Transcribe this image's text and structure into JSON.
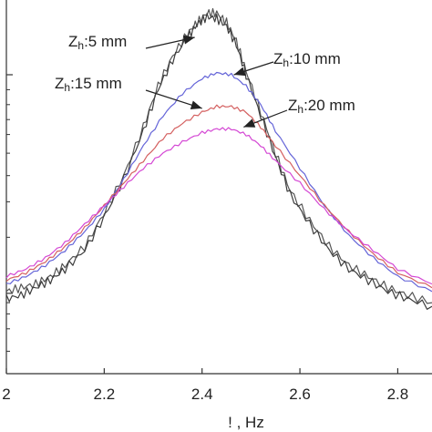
{
  "chart_data": {
    "type": "line",
    "title": "",
    "xlabel": "!  , Hz",
    "ylabel": "",
    "xlim": [
      2.0,
      2.87
    ],
    "ylim": [
      0.0,
      1.0
    ],
    "x_ticks": [
      {
        "value": 2.0,
        "label": "2"
      },
      {
        "value": 2.2,
        "label": "2.2"
      },
      {
        "value": 2.4,
        "label": "2.4"
      },
      {
        "value": 2.6,
        "label": "2.6"
      },
      {
        "value": 2.8,
        "label": "2.8"
      }
    ],
    "y_major_ticks": [
      0.215,
      0.8
    ],
    "y_minor_ticks": [
      0.06,
      0.12,
      0.16,
      0.19,
      0.365,
      0.46,
      0.53,
      0.59,
      0.64,
      0.68,
      0.72,
      0.76
    ],
    "grid": false,
    "legend": "none",
    "series": [
      {
        "color": "#555555",
        "x": [
          2.0,
          2.03,
          2.06,
          2.09,
          2.12,
          2.16,
          2.2,
          2.24,
          2.28,
          2.31,
          2.34,
          2.37,
          2.39,
          2.41,
          2.43,
          2.45,
          2.47,
          2.49,
          2.52,
          2.55,
          2.58,
          2.62,
          2.66,
          2.7,
          2.74,
          2.78,
          2.82,
          2.87
        ],
        "values": [
          0.22,
          0.23,
          0.24,
          0.26,
          0.29,
          0.34,
          0.43,
          0.53,
          0.66,
          0.77,
          0.85,
          0.91,
          0.94,
          0.965,
          0.965,
          0.94,
          0.89,
          0.81,
          0.7,
          0.59,
          0.49,
          0.41,
          0.34,
          0.29,
          0.26,
          0.23,
          0.21,
          0.19
        ]
      },
      {
        "color": "#3d3d3d",
        "x": [
          2.0,
          2.03,
          2.06,
          2.09,
          2.12,
          2.16,
          2.2,
          2.24,
          2.28,
          2.31,
          2.34,
          2.37,
          2.39,
          2.41,
          2.43,
          2.45,
          2.47,
          2.49,
          2.52,
          2.55,
          2.58,
          2.62,
          2.66,
          2.7,
          2.74,
          2.78,
          2.82,
          2.87
        ],
        "values": [
          0.2,
          0.21,
          0.23,
          0.25,
          0.28,
          0.33,
          0.42,
          0.52,
          0.65,
          0.76,
          0.84,
          0.9,
          0.935,
          0.955,
          0.95,
          0.93,
          0.88,
          0.8,
          0.69,
          0.58,
          0.48,
          0.4,
          0.33,
          0.28,
          0.25,
          0.22,
          0.2,
          0.18
        ]
      },
      {
        "color": "#6464d8",
        "x": [
          2.0,
          2.04,
          2.08,
          2.12,
          2.16,
          2.2,
          2.24,
          2.28,
          2.32,
          2.36,
          2.4,
          2.43,
          2.46,
          2.49,
          2.52,
          2.55,
          2.6,
          2.65,
          2.7,
          2.75,
          2.8,
          2.87
        ],
        "values": [
          0.24,
          0.26,
          0.29,
          0.33,
          0.38,
          0.44,
          0.52,
          0.61,
          0.69,
          0.75,
          0.79,
          0.805,
          0.8,
          0.77,
          0.72,
          0.65,
          0.55,
          0.45,
          0.37,
          0.31,
          0.26,
          0.22
        ]
      },
      {
        "color": "#d46060",
        "x": [
          2.0,
          2.04,
          2.08,
          2.12,
          2.16,
          2.2,
          2.24,
          2.28,
          2.32,
          2.36,
          2.4,
          2.43,
          2.46,
          2.49,
          2.52,
          2.55,
          2.6,
          2.65,
          2.7,
          2.75,
          2.8,
          2.87
        ],
        "values": [
          0.25,
          0.27,
          0.3,
          0.34,
          0.39,
          0.45,
          0.51,
          0.57,
          0.63,
          0.67,
          0.7,
          0.715,
          0.715,
          0.7,
          0.66,
          0.61,
          0.53,
          0.45,
          0.38,
          0.32,
          0.27,
          0.23
        ]
      },
      {
        "color": "#d447d4",
        "x": [
          2.0,
          2.04,
          2.08,
          2.12,
          2.16,
          2.2,
          2.24,
          2.28,
          2.32,
          2.36,
          2.4,
          2.43,
          2.46,
          2.49,
          2.52,
          2.55,
          2.6,
          2.65,
          2.7,
          2.75,
          2.8,
          2.87
        ],
        "values": [
          0.26,
          0.28,
          0.31,
          0.35,
          0.4,
          0.45,
          0.5,
          0.55,
          0.59,
          0.62,
          0.645,
          0.655,
          0.655,
          0.64,
          0.61,
          0.57,
          0.51,
          0.44,
          0.38,
          0.33,
          0.28,
          0.24
        ]
      }
    ],
    "annotations": [
      {
        "label": "Z",
        "sub": "h",
        "text": ":5 mm",
        "target_x": 2.385,
        "target_y": 0.9
      },
      {
        "label": "Z",
        "sub": "h",
        "text": ":10 mm",
        "target_x": 2.465,
        "target_y": 0.8
      },
      {
        "label": "Z",
        "sub": "h",
        "text": ":15 mm",
        "target_x": 2.4,
        "target_y": 0.71
      },
      {
        "label": "Z",
        "sub": "h",
        "text": ":20 mm",
        "target_x": 2.485,
        "target_y": 0.66
      }
    ]
  }
}
